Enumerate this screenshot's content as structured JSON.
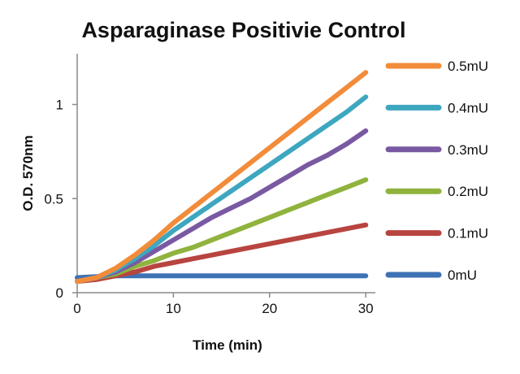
{
  "chart_data": {
    "type": "line",
    "title": "Asparaginase Positivie Control",
    "xlabel": "Time (min)",
    "ylabel": "O.D. 570nm",
    "xlim": [
      0,
      31
    ],
    "ylim": [
      0,
      1.27
    ],
    "xticks": [
      0,
      10,
      20,
      30
    ],
    "xtick_labels": [
      "0",
      "10",
      "20",
      "30"
    ],
    "yticks": [
      0,
      0.5,
      1
    ],
    "ytick_labels": [
      "0",
      "0.5",
      "1"
    ],
    "grid": false,
    "legend_position": "right",
    "series": [
      {
        "name": "0.5mU",
        "color": "#F28C3A",
        "x": [
          0,
          2,
          4,
          6,
          8,
          10,
          12,
          14,
          16,
          18,
          20,
          22,
          24,
          26,
          28,
          30
        ],
        "y": [
          0.06,
          0.08,
          0.13,
          0.2,
          0.28,
          0.37,
          0.45,
          0.53,
          0.61,
          0.69,
          0.77,
          0.85,
          0.93,
          1.01,
          1.09,
          1.17
        ]
      },
      {
        "name": "0.4mU",
        "color": "#3EA7C0",
        "x": [
          0,
          2,
          4,
          6,
          8,
          10,
          12,
          14,
          16,
          18,
          20,
          22,
          24,
          26,
          28,
          30
        ],
        "y": [
          0.06,
          0.08,
          0.12,
          0.18,
          0.25,
          0.33,
          0.4,
          0.47,
          0.54,
          0.61,
          0.68,
          0.75,
          0.82,
          0.89,
          0.96,
          1.04
        ]
      },
      {
        "name": "0.3mU",
        "color": "#7A59A3",
        "x": [
          0,
          2,
          4,
          6,
          8,
          10,
          12,
          14,
          16,
          18,
          20,
          22,
          24,
          26,
          28,
          30
        ],
        "y": [
          0.06,
          0.08,
          0.11,
          0.16,
          0.22,
          0.28,
          0.34,
          0.4,
          0.45,
          0.5,
          0.56,
          0.62,
          0.68,
          0.73,
          0.79,
          0.86
        ]
      },
      {
        "name": "0.2mU",
        "color": "#8FB33D",
        "x": [
          0,
          2,
          4,
          6,
          8,
          10,
          12,
          14,
          16,
          18,
          20,
          22,
          24,
          26,
          28,
          30
        ],
        "y": [
          0.06,
          0.08,
          0.1,
          0.14,
          0.17,
          0.21,
          0.24,
          0.28,
          0.32,
          0.36,
          0.4,
          0.44,
          0.48,
          0.52,
          0.56,
          0.6
        ]
      },
      {
        "name": "0.1mU",
        "color": "#B84440",
        "x": [
          0,
          2,
          4,
          6,
          8,
          10,
          12,
          14,
          16,
          18,
          20,
          22,
          24,
          26,
          28,
          30
        ],
        "y": [
          0.06,
          0.07,
          0.09,
          0.11,
          0.14,
          0.16,
          0.18,
          0.2,
          0.22,
          0.24,
          0.26,
          0.28,
          0.3,
          0.32,
          0.34,
          0.36
        ]
      },
      {
        "name": "0mU",
        "color": "#3D72B4",
        "x": [
          0,
          2,
          4,
          6,
          8,
          10,
          12,
          14,
          16,
          18,
          20,
          22,
          24,
          26,
          28,
          30
        ],
        "y": [
          0.08,
          0.085,
          0.09,
          0.09,
          0.09,
          0.09,
          0.09,
          0.09,
          0.09,
          0.09,
          0.09,
          0.09,
          0.09,
          0.09,
          0.09,
          0.09
        ]
      }
    ]
  }
}
